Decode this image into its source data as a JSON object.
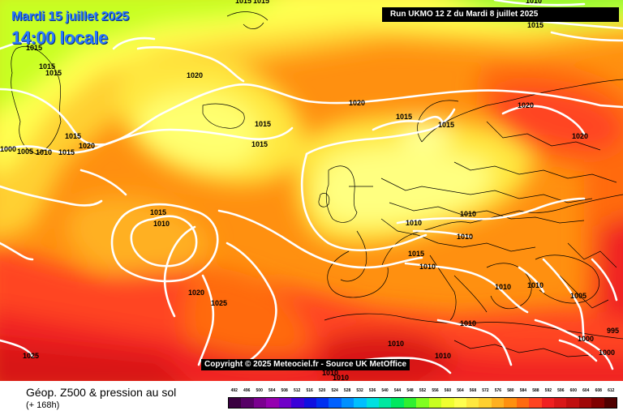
{
  "header": {
    "date": "Mardi 15 juillet 2025",
    "time": "14:00 locale",
    "run": "Run UKMO 12 Z du Mardi 8 juillet 2025"
  },
  "footer": {
    "parameter": "Géop. Z500 & pression au sol",
    "lead": "(+ 168h)",
    "copyright": "Copyright © 2025 Meteociel.fr - Source UK MetOffice"
  },
  "scale": {
    "labels": [
      "492",
      "496",
      "500",
      "504",
      "508",
      "512",
      "516",
      "520",
      "524",
      "528",
      "532",
      "536",
      "540",
      "544",
      "548",
      "552",
      "556",
      "560",
      "564",
      "568",
      "572",
      "576",
      "580",
      "584",
      "588",
      "592",
      "596",
      "600",
      "604",
      "608",
      "612"
    ],
    "colors": [
      "#3a0040",
      "#570066",
      "#7a008f",
      "#9500b0",
      "#7000c8",
      "#3a00d8",
      "#1010e0",
      "#0030f0",
      "#0060ff",
      "#0090ff",
      "#00bfff",
      "#00e0e0",
      "#00e8a0",
      "#00e860",
      "#30f030",
      "#80ff20",
      "#c8ff20",
      "#f0ff30",
      "#ffff50",
      "#ffe840",
      "#ffd030",
      "#ffb020",
      "#ff9010",
      "#ff6a10",
      "#ff4420",
      "#f02020",
      "#d81818",
      "#c01010",
      "#a00808",
      "#800000",
      "#500000"
    ]
  },
  "isobars": [
    {
      "value": "1015",
      "color": "#ffffff"
    },
    {
      "value": "1020",
      "color": "#ffffff"
    },
    {
      "value": "1010",
      "color": "#ffffff"
    },
    {
      "value": "1005",
      "color": "#ffffff"
    },
    {
      "value": "1000",
      "color": "#ffffff"
    },
    {
      "value": "1025",
      "color": "#ffffff"
    },
    {
      "value": "995",
      "color": "#ffffff"
    }
  ],
  "colors": {
    "z500_green": "#90ff30",
    "z500_yellow": "#ffff50",
    "z500_lightyellow": "#ffff99",
    "z500_orange": "#ffb020",
    "z500_red": "#ff4420",
    "z500_darkred": "#c01010",
    "contour": "#ffffff",
    "coast": "#000000"
  }
}
